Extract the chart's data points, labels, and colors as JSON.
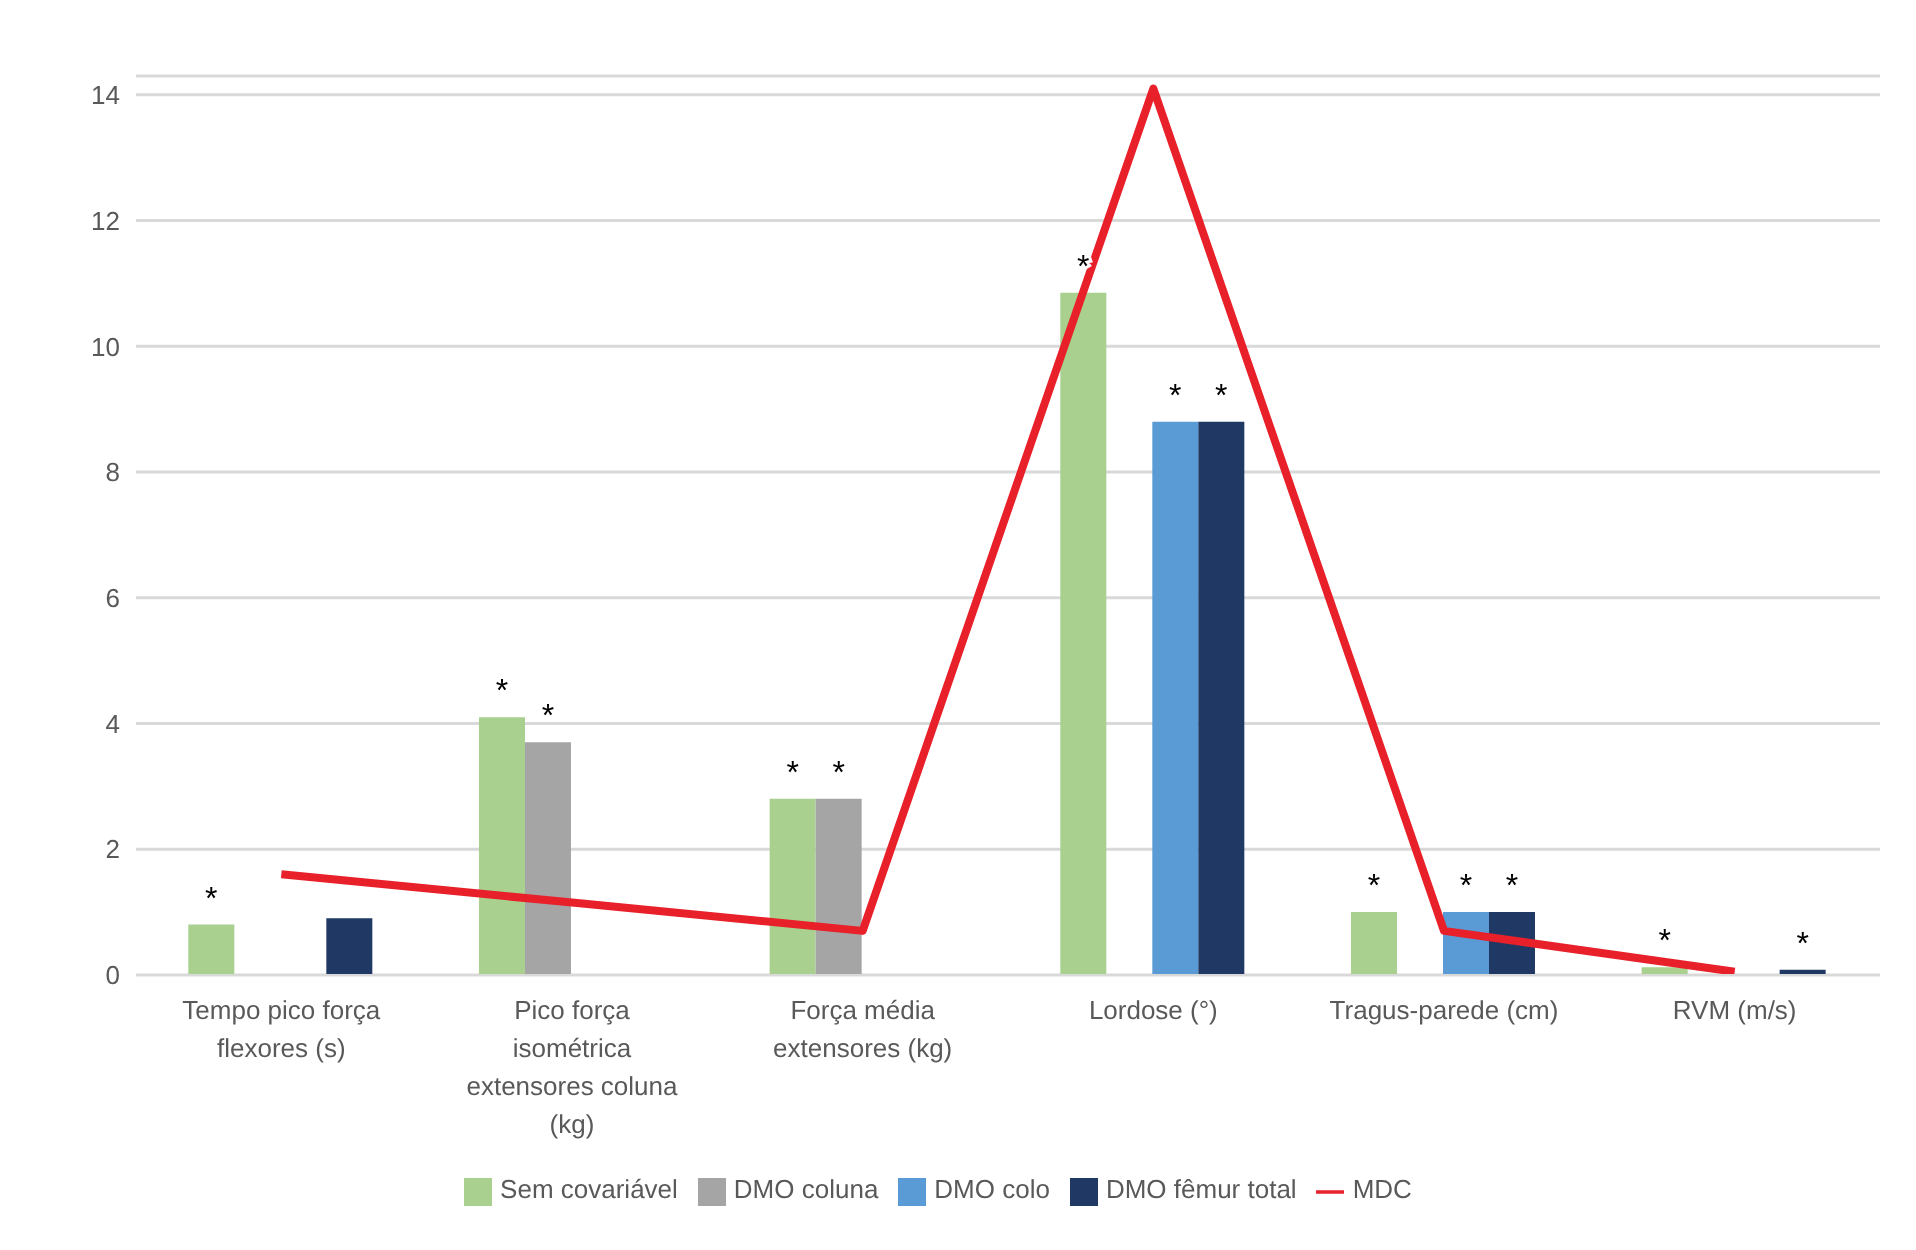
{
  "chart_data": {
    "type": "bar",
    "categories": [
      "Tempo pico força flexores (s)",
      "Pico força isométrica extensores coluna (kg)",
      "Força média extensores (kg)",
      "Lordose (°)",
      "Tragus-parede (cm)",
      "RVM (m/s)"
    ],
    "series": [
      {
        "name": "Sem covariável",
        "color": "#a9d08e",
        "values": [
          0.8,
          4.1,
          2.8,
          10.85,
          1.0,
          0.12
        ],
        "value_labels": [
          "*",
          "*",
          "*",
          "*",
          "*",
          "*"
        ]
      },
      {
        "name": "DMO coluna",
        "color": "#a5a5a5",
        "values": [
          null,
          3.7,
          2.8,
          null,
          null,
          null
        ],
        "value_labels": [
          null,
          "*",
          "*",
          null,
          null,
          null
        ]
      },
      {
        "name": "DMO colo",
        "color": "#5b9bd5",
        "values": [
          null,
          null,
          null,
          8.8,
          1.0,
          null
        ],
        "value_labels": [
          null,
          null,
          null,
          "*",
          "*",
          null
        ]
      },
      {
        "name": "DMO fêmur total",
        "color": "#203864",
        "values": [
          0.9,
          null,
          null,
          8.8,
          1.0,
          0.08
        ],
        "value_labels": [
          null,
          null,
          null,
          "*",
          "*",
          "*"
        ]
      },
      {
        "name": "MDC",
        "type": "line",
        "color": "#e8202a",
        "values": [
          1.6,
          1.15,
          0.7,
          14.1,
          0.7,
          0.05
        ]
      }
    ],
    "ylim": [
      0,
      14.3
    ],
    "yticks": [
      0,
      2,
      4,
      6,
      8,
      10,
      12,
      14
    ],
    "grid": "y",
    "legend": "bottom",
    "marker": "none",
    "line_style": "solid"
  }
}
